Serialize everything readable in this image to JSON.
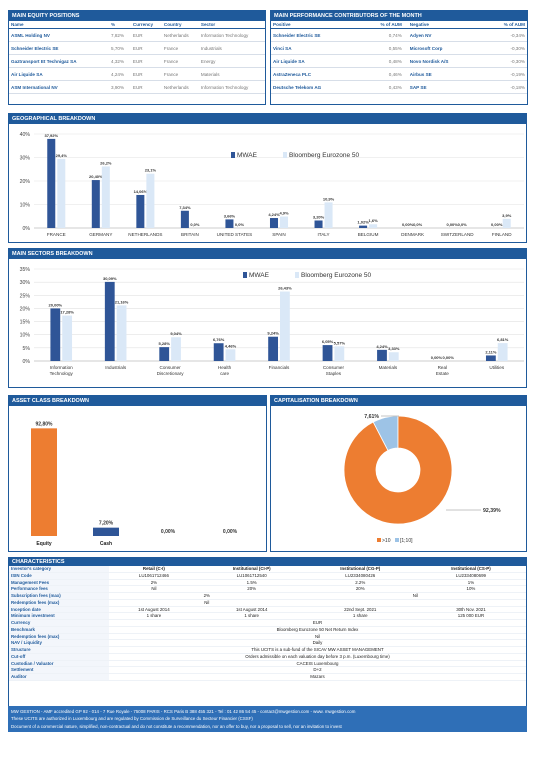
{
  "equity": {
    "title": "MAIN EQUITY POSITIONS",
    "cols": [
      "Name",
      "%",
      "Currency",
      "Country",
      "Sector"
    ],
    "rows": [
      [
        "ASML Holding NV",
        "7,82%",
        "EUR",
        "Netherlands",
        "Information Technology"
      ],
      [
        "Schneider Electric SE",
        "5,70%",
        "EUR",
        "France",
        "Industrials"
      ],
      [
        "Gaztransport Et Technigaz SA",
        "4,32%",
        "EUR",
        "France",
        "Energy"
      ],
      [
        "Air Liquide SA",
        "4,24%",
        "EUR",
        "France",
        "Materials"
      ],
      [
        "ASM International NV",
        "3,90%",
        "EUR",
        "Netherlands",
        "Information Technology"
      ]
    ]
  },
  "contrib": {
    "title": "MAIN PERFORMANCE CONTRIBUTORS OF THE MONTH",
    "cols": [
      "Positive",
      "% of AUM",
      "Negative",
      "% of AUM"
    ],
    "rows": [
      [
        "Schneider Electric SE",
        "0,74%",
        "Adyen NV",
        "-0,34%"
      ],
      [
        "Vinci SA",
        "0,55%",
        "Microsoft Corp",
        "-0,30%"
      ],
      [
        "Air Liquide SA",
        "0,48%",
        "Novo Nordisk A/S",
        "-0,30%"
      ],
      [
        "AstraZeneca PLC",
        "0,46%",
        "Airbus SE",
        "-0,19%"
      ],
      [
        "Deutsche Telekom AG",
        "0,43%",
        "SAP SE",
        "-0,18%"
      ]
    ]
  },
  "chart_data": [
    {
      "type": "bar",
      "title": "GEOGRAPHICAL BREAKDOWN",
      "categories": [
        "FRANCE",
        "GERMANY",
        "NETHERLANDS",
        "BRITAIN",
        "UNITED STATES",
        "SPAIN",
        "ITALY",
        "BELGIUM",
        "DENMARK",
        "SWITZERLAND",
        "FINLAND"
      ],
      "series": [
        {
          "name": "MWAE",
          "values": [
            37.92,
            20.4,
            14.06,
            7.34,
            3.66,
            4.24,
            3.2,
            1.02,
            0.0,
            0.0,
            0.0
          ],
          "labels": [
            "37,92%",
            "20,40%",
            "14,06%",
            "7,34%",
            "3,66%",
            "4,24%",
            "3,20%",
            "1,02%",
            "0,00%",
            "0,00%",
            "0,00%"
          ]
        },
        {
          "name": "Bloomberg Eurozone 50",
          "values": [
            29.4,
            26.2,
            23.1,
            0.0,
            0.0,
            4.9,
            10.9,
            1.6,
            0.0,
            0.0,
            3.9
          ],
          "labels": [
            "29,4%",
            "26,2%",
            "23,1%",
            "0,0%",
            "0,0%",
            "4,9%",
            "10,9%",
            "1,6%",
            "0,0%",
            "0,0%",
            "3,9%"
          ]
        }
      ],
      "yticks": [
        "0%",
        "10%",
        "20%",
        "30%",
        "40%"
      ],
      "ylim": [
        0,
        40
      ]
    },
    {
      "type": "bar",
      "title": "MAIN SECTORS BREAKDOWN",
      "categories": [
        "Information Technology",
        "Industrials",
        "Consumer Discretionary",
        "Health care",
        "Financials",
        "Consumer Staples",
        "Materials",
        "Real Estate",
        "Utilities"
      ],
      "series": [
        {
          "name": "MWAE",
          "values": [
            20.0,
            30.09,
            5.28,
            6.76,
            9.24,
            6.05,
            4.24,
            0.0,
            2.11
          ],
          "labels": [
            "20,00%",
            "30,09%",
            "5,28%",
            "6,76%",
            "9,24%",
            "6,05%",
            "4,24%",
            "0,00%",
            "2,11%"
          ]
        },
        {
          "name": "Bloomberg Eurozone 50",
          "values": [
            17.28,
            21.16,
            9.04,
            4.46,
            26.43,
            5.57,
            3.33,
            0.0,
            6.81
          ],
          "labels": [
            "17,28%",
            "21,16%",
            "9,04%",
            "4,46%",
            "26,43%",
            "5,57%",
            "3,33%",
            "0,00%",
            "6,81%"
          ]
        }
      ],
      "yticks": [
        "0%",
        "5%",
        "10%",
        "15%",
        "20%",
        "25%",
        "30%",
        "35%"
      ],
      "ylim": [
        0,
        35
      ]
    },
    {
      "type": "bar",
      "title": "ASSET CLASS BREAKDOWN",
      "categories": [
        "Equity",
        "Cash",
        "",
        ""
      ],
      "values": [
        92.8,
        7.2,
        0.0,
        0.0
      ],
      "labels": [
        "92,80%",
        "7,20%",
        "0,00%",
        "0,00%"
      ]
    },
    {
      "type": "pie",
      "title": "CAPITALISATION BREAKDOWN",
      "categories": [
        ">10",
        "[1;10]"
      ],
      "values": [
        92.39,
        7.61
      ],
      "labels": [
        "92,39%",
        "7,61%"
      ],
      "colors": [
        "#ed7d31",
        "#9dc3e6"
      ],
      "legend": "bottom"
    }
  ],
  "colors": {
    "primary": "#1f5a9b",
    "mwae": "#2f5597",
    "benchmark": "#dae8f7",
    "orange": "#ed7d31"
  },
  "characteristics": {
    "title": "CHARACTERISTICS",
    "headers": [
      "Retail (C-I)",
      "Institutional (CI-P)",
      "Institutional (CG-P)",
      "Institutional (CS-P)"
    ],
    "rows": [
      {
        "label": "Investor's category",
        "cells": [
          "Retail (C-I)",
          "Institutional (CI-P)",
          "Institutional (CG-P)",
          "Institutional (CS-P)"
        ]
      },
      {
        "label": "ISIN Code",
        "cells": [
          "LU1061712466",
          "LU1061712540",
          "LU2334080426",
          "LU2334080699"
        ]
      },
      {
        "label": "Management Fees",
        "cells": [
          "2%",
          "1.5%",
          "2.2%",
          "1%"
        ]
      },
      {
        "label": "Performance fees",
        "cells": [
          "Nil",
          "20%",
          "20%",
          "10%"
        ]
      },
      {
        "label": "Subscription fees (max)",
        "span": [
          "2%",
          "Nil"
        ]
      },
      {
        "label": "Redemption fees (max)",
        "span": [
          "Nil",
          ""
        ]
      },
      {
        "label": "Inception date",
        "cells": [
          "1st August 2014",
          "1st August 2014",
          "22nd Sept. 2021",
          "30th Nov. 2021"
        ]
      },
      {
        "label": "Minimum investment",
        "cells": [
          "1 share",
          "1 share",
          "1 share",
          "125 000 EUR"
        ]
      },
      {
        "label": "Currency",
        "full": "EUR"
      },
      {
        "label": "Benchmark",
        "full": "Bloomberg Eurozone 50 Net Return Index"
      },
      {
        "label": "Redemption fees (max)",
        "full": "Nil"
      },
      {
        "label": "NAV / Liquidity",
        "full": "Daily"
      },
      {
        "label": "Structure",
        "full": "This UCITS is a sub-fund of the SICAV MW ASSET MANAGEMENT"
      },
      {
        "label": "Cut-off",
        "full": "Orders admissible on each valuation day before 3 p.m. (Luxembourg time)"
      },
      {
        "label": "Custodian / Valuator",
        "full": "CACEIS Luxembourg"
      },
      {
        "label": "Settlement",
        "full": "D+2"
      },
      {
        "label": "Auditor",
        "full": "Mazars"
      }
    ]
  },
  "footer": [
    "MW GESTION - AMF accredited GP 92 - 014 - 7 Rue Royale - 75008 PARIS - RCS Paris B 388 455 321 - Tel : 01 42 86 54 45 - contact@mwgestion.com - www. mwgestion.com",
    "These UCITS are authorized in Luxembourg and are regulated by Commission de Surveillance du Secteur Financier (CSSF)",
    "Document of a commercial nature, simplified, non-contractual and do not constitute a recommendation, nor an offer to buy, nor a proposal to sell, nor an invitation to invest"
  ]
}
